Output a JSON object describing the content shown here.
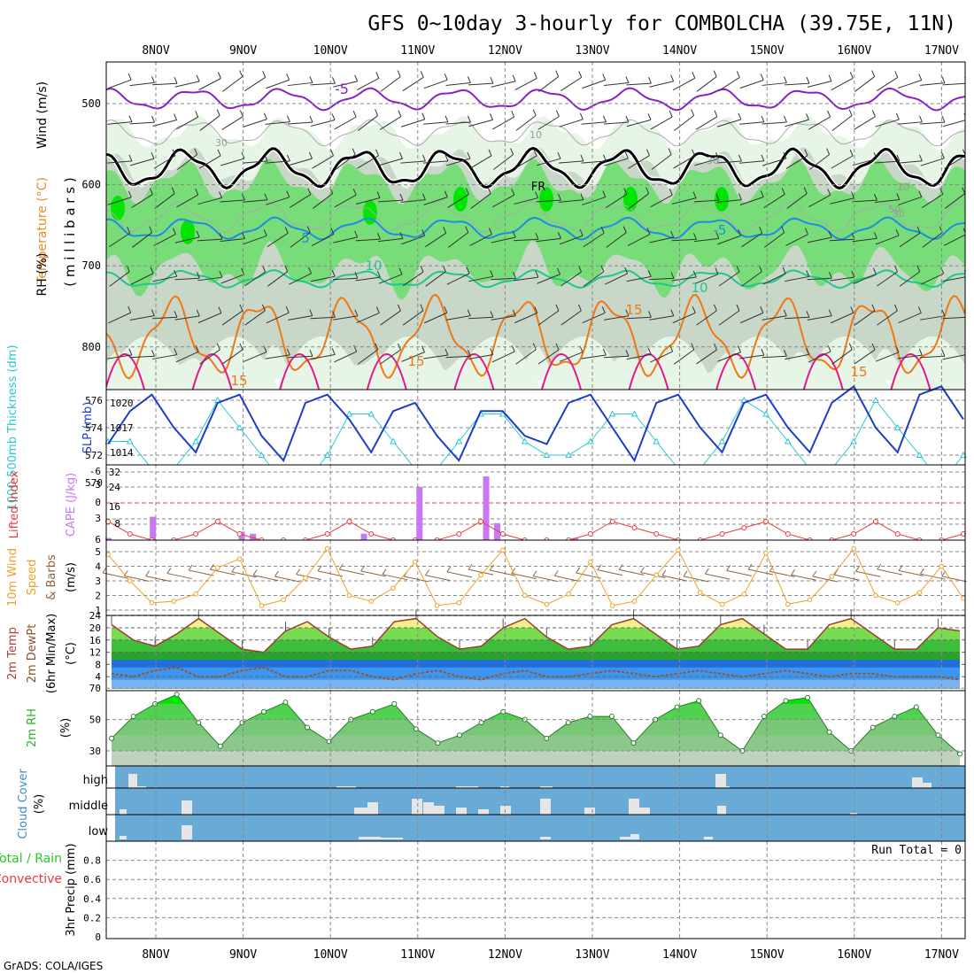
{
  "title": "GFS 0~10day 3-hourly for COMBOLCHA (39.75E, 11N)",
  "footer": "GrADS: COLA/IGES",
  "run_total_label": "Run Total = 0",
  "dates": [
    "8NOV",
    "9NOV",
    "10NOV",
    "11NOV",
    "12NOV",
    "13NOV",
    "14NOV",
    "15NOV",
    "16NOV",
    "17NOV"
  ],
  "colors": {
    "purple": "#8c1ec8",
    "black": "#000000",
    "blue_temp": "#1e8ce6",
    "green_temp": "#1ec88c",
    "orange": "#f07814",
    "magenta": "#e6148c",
    "rh_light": "#e6f5e6",
    "rh_mid": "#c8d7c8",
    "rh_green": "#78dc78",
    "rh_bright": "#00e600",
    "slp": "#1e3cc8",
    "thick": "#28c8d2",
    "cape": "#c878f0",
    "li": "#e63c3c",
    "wind": "#f0a028",
    "barb": "#8c6446",
    "dewpt": "#a05028",
    "cloud_bg": "#6aaad7",
    "cloud_bar": "#e6e6e6"
  },
  "panels": {
    "upper": {
      "ylabel_wind": "Wind (m/s)",
      "ylabel_temp": "Temperature (°C)",
      "ylabel_rh": "RH (%)",
      "ylabel_mb": "( m i l l i b a r s )",
      "ticks": [
        "500",
        "600",
        "700",
        "800"
      ],
      "contour_labels": [
        "-5",
        "FR",
        "5",
        "-5",
        "10",
        "10",
        "15",
        "15",
        "15",
        "15",
        "30",
        "10",
        "30",
        "10",
        "30",
        "50",
        "-5"
      ]
    },
    "slp": {
      "ylabel_thick": "1000-500mb Thickness (dm)",
      "ylabel_slp": "SLP (mb)",
      "ticks_left": [
        "576",
        "574",
        "572",
        "570"
      ],
      "ticks_right": [
        "1020",
        "1017",
        "1014"
      ]
    },
    "cape": {
      "ylabel_li": "Lifted Index",
      "ylabel_cape": "CAPE (J/kg)",
      "ticks_left": [
        "-6",
        "-3",
        "0",
        "3",
        "6"
      ],
      "ticks_right": [
        "32",
        "24",
        "16",
        "8"
      ]
    },
    "wind": {
      "ylabel1": "10m Wind",
      "ylabel2": "Speed",
      "ylabel3": "& Barbs",
      "ylabel4": "(m/s)",
      "ticks": [
        "5",
        "4",
        "3",
        "2",
        "1"
      ]
    },
    "temp": {
      "ylabel1": "2m Temp",
      "ylabel2": "2m DewPt",
      "ylabel3": "(6hr Min/Max)",
      "ylabel4": "(°C)",
      "ticks": [
        "24",
        "20",
        "16",
        "12",
        "8",
        "4"
      ]
    },
    "rh": {
      "ylabel1": "2m RH",
      "ylabel2": "(%)",
      "ticks": [
        "70",
        "50",
        "30"
      ]
    },
    "cloud": {
      "ylabel1": "Cloud Cover",
      "ylabel2": "(%)",
      "levels": [
        "high",
        "middle",
        "low"
      ]
    },
    "precip": {
      "ylabel1": "Total / Rain",
      "ylabel2": "Convective",
      "ylabel3": "3hr Precip (mm)",
      "ticks": [
        "0.8",
        "0.6",
        "0.4",
        "0.2",
        "0"
      ]
    }
  },
  "chart_data": [
    {
      "type": "heatmap",
      "title": "Wind / Temperature / RH vs pressure",
      "ylabel": "millibars",
      "ylim": [
        850,
        450
      ],
      "isotherms": [
        {
          "label": "-5",
          "level_mb": 500
        },
        {
          "label": "FR",
          "level_mb": 590
        },
        {
          "label": "5",
          "level_mb": 660
        },
        {
          "label": "10",
          "level_mb": 720
        },
        {
          "label": "15",
          "level_mb": 790
        }
      ]
    },
    {
      "type": "line",
      "title": "SLP and 1000-500mb thickness",
      "series": [
        {
          "name": "SLP (mb)",
          "values": [
            1015,
            1019,
            1021,
            1017,
            1014,
            1020,
            1021,
            1016,
            1013,
            1020,
            1021,
            1018,
            1014,
            1019,
            1020,
            1016,
            1013,
            1019,
            1019,
            1016,
            1015,
            1020,
            1021,
            1017,
            1013,
            1020,
            1021,
            1017,
            1014,
            1020,
            1021,
            1017,
            1014,
            1020,
            1022,
            1017,
            1014,
            1021,
            1022,
            1018
          ]
        },
        {
          "name": "Thickness (dm)",
          "values": [
            573,
            573,
            571,
            571,
            573,
            576,
            574,
            572,
            570,
            570,
            572,
            575,
            575,
            573,
            571,
            571,
            573,
            575,
            575,
            573,
            572,
            572,
            573,
            575,
            575,
            573,
            571,
            571,
            573,
            576,
            575,
            573,
            571,
            571,
            573,
            576,
            574,
            572,
            570,
            572
          ]
        }
      ],
      "ylim": [
        569,
        577
      ]
    },
    {
      "type": "bar",
      "title": "CAPE and Lifted Index",
      "series": [
        {
          "name": "CAPE (J/kg)",
          "values": [
            1,
            0,
            0,
            0,
            11,
            0,
            0,
            0,
            0,
            0,
            0,
            0,
            4,
            3,
            0,
            0,
            0,
            0,
            0,
            0,
            0,
            0,
            0,
            3,
            0,
            0,
            0,
            0,
            25,
            0,
            0,
            0,
            0,
            0,
            30,
            8,
            0,
            0,
            0,
            0,
            0,
            0,
            1,
            0,
            0,
            0,
            0,
            0,
            0,
            0,
            0,
            0,
            0,
            0,
            0,
            0,
            0,
            0,
            0,
            0,
            0,
            0,
            0,
            0,
            0,
            0,
            0,
            0,
            0,
            0,
            0,
            0,
            0,
            0,
            0,
            0,
            0,
            0
          ]
        },
        {
          "name": "Lifted Index",
          "values": [
            3,
            5,
            6,
            6,
            5,
            3,
            5,
            6,
            6,
            6,
            5,
            3,
            5,
            6,
            6,
            6,
            5,
            3,
            5,
            6,
            6,
            6,
            5,
            3,
            4,
            5,
            6,
            6,
            5,
            4,
            3,
            5,
            6,
            6,
            5,
            3,
            5,
            6,
            6,
            5
          ]
        }
      ]
    },
    {
      "type": "line",
      "title": "10m Wind Speed",
      "ylim": [
        1,
        5.5
      ],
      "series": [
        {
          "name": "Speed (m/s)",
          "values": [
            4.8,
            3.0,
            1.5,
            1.6,
            2.1,
            3.9,
            4.5,
            1.3,
            1.7,
            3.2,
            5.2,
            2.0,
            1.6,
            2.5,
            4.3,
            1.3,
            1.5,
            3.4,
            5.1,
            2.0,
            1.4,
            2.1,
            4.3,
            1.3,
            1.6,
            3.4,
            5.1,
            2.2,
            1.4,
            2.1,
            4.9,
            1.4,
            1.7,
            3.3,
            5.2,
            2.0,
            1.5,
            2.2,
            4.0,
            1.8
          ]
        }
      ]
    },
    {
      "type": "area",
      "title": "2m Temp / DewPt",
      "ylim": [
        0,
        25
      ],
      "series": [
        {
          "name": "2m Temp (°C)",
          "values": [
            21,
            16,
            14,
            18,
            23,
            18,
            13,
            12,
            19,
            22,
            17,
            13,
            14,
            22,
            23,
            17,
            13,
            14,
            20,
            23,
            17,
            13,
            14,
            21,
            23,
            18,
            13,
            14,
            21,
            23,
            18,
            13,
            13,
            21,
            23,
            18,
            13,
            13,
            20,
            19
          ]
        },
        {
          "name": "2m DewPt (°C)",
          "values": [
            5,
            4,
            6,
            7,
            4,
            4,
            6,
            7,
            4,
            4,
            6,
            6,
            4,
            3,
            5,
            6,
            4,
            3,
            5,
            6,
            4,
            4,
            5,
            6,
            5,
            4,
            5,
            6,
            5,
            4,
            5,
            6,
            5,
            4,
            5,
            5,
            4,
            4,
            4,
            3
          ]
        }
      ]
    },
    {
      "type": "area",
      "title": "2m RH",
      "ylim": [
        25,
        72
      ],
      "series": [
        {
          "name": "2m RH (%)",
          "values": [
            38,
            52,
            60,
            66,
            48,
            33,
            48,
            55,
            61,
            45,
            36,
            50,
            55,
            60,
            44,
            35,
            40,
            48,
            55,
            50,
            38,
            48,
            52,
            52,
            35,
            50,
            58,
            62,
            40,
            30,
            52,
            62,
            64,
            42,
            30,
            45,
            52,
            58,
            40,
            28
          ]
        }
      ]
    },
    {
      "type": "bar",
      "title": "Cloud Cover",
      "categories": [
        "high",
        "middle",
        "low"
      ]
    },
    {
      "type": "bar",
      "title": "3hr Precip (mm)",
      "ylim": [
        0,
        1
      ],
      "values": [
        0,
        0,
        0,
        0,
        0,
        0,
        0,
        0,
        0,
        0
      ]
    }
  ]
}
